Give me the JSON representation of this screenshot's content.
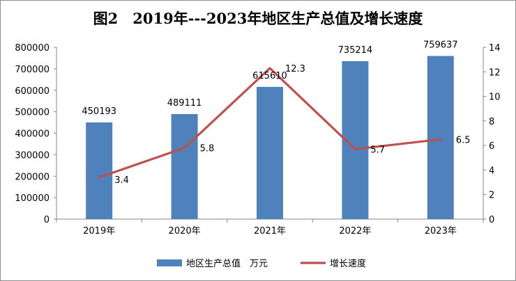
{
  "chart_data": {
    "type": "bar",
    "title": "图2　2019年---2023年地区生产总值及增长速度",
    "categories": [
      "2019年",
      "2020年",
      "2021年",
      "2022年",
      "2023年"
    ],
    "series": [
      {
        "name": "地区生产总值　万元",
        "type": "bar",
        "axis": "left",
        "color": "#4f81bd",
        "values": [
          450193,
          489111,
          615610,
          735214,
          759637
        ]
      },
      {
        "name": "增长速度",
        "type": "line",
        "axis": "right",
        "color": "#c0504d",
        "values": [
          3.4,
          5.8,
          12.3,
          5.7,
          6.5
        ]
      }
    ],
    "ylim_left": [
      0,
      800000
    ],
    "yticks_left": [
      "0",
      "100000",
      "200000",
      "300000",
      "400000",
      "500000",
      "600000",
      "700000",
      "800000"
    ],
    "ylim_right": [
      0,
      14
    ],
    "yticks_right": [
      "0",
      "2",
      "4",
      "6",
      "8",
      "10",
      "12",
      "14"
    ],
    "bar_labels": [
      "450193",
      "489111",
      "615610",
      "735214",
      "759637"
    ],
    "line_labels": [
      "3.4",
      "5.8",
      "12.3",
      "5.7",
      "6.5"
    ],
    "grid": false,
    "legend_position": "bottom"
  }
}
